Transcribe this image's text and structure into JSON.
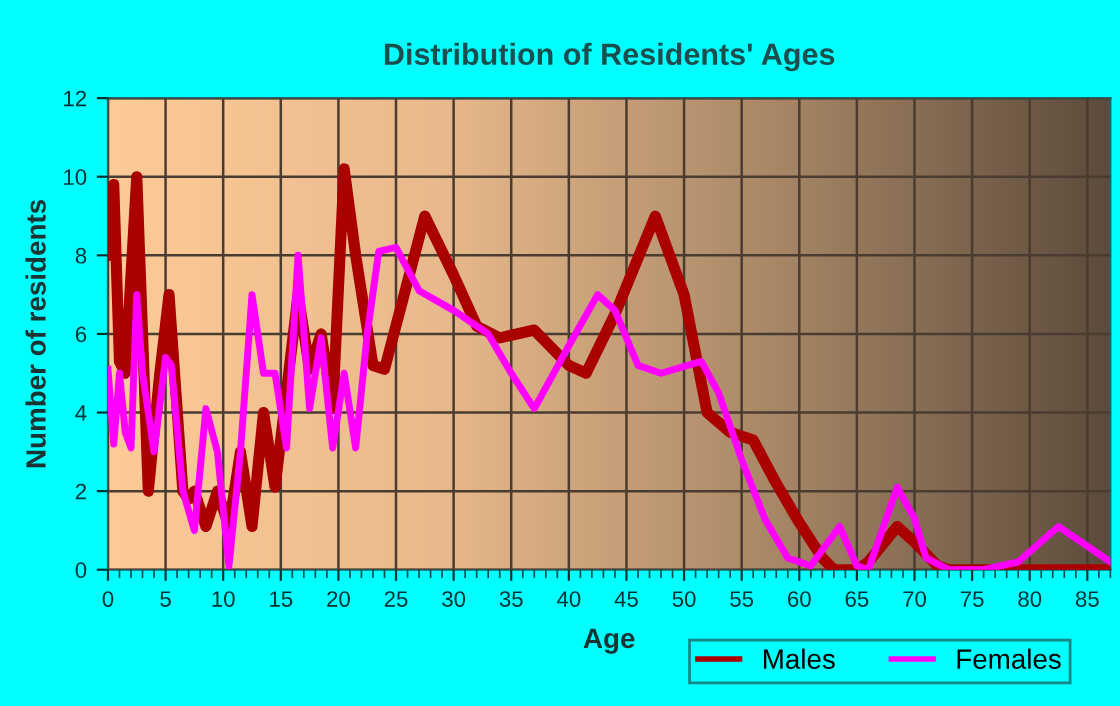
{
  "chart_data": {
    "type": "line",
    "title": "Distribution of Residents' Ages",
    "xlabel": "Age",
    "ylabel": "Number of residents",
    "xlim": [
      0,
      87
    ],
    "xticks": [
      0,
      5,
      10,
      15,
      20,
      25,
      30,
      35,
      40,
      45,
      50,
      55,
      60,
      65,
      70,
      75,
      80,
      85
    ],
    "ylim": [
      0,
      12
    ],
    "yticks": [
      0,
      2,
      4,
      6,
      8,
      10,
      12
    ],
    "grid": true,
    "legend": "bottom",
    "line_style": "solid",
    "marker": "none",
    "series": [
      {
        "name": "Males",
        "color": "#aa0000",
        "x": [
          0,
          0.5,
          1,
          1.5,
          2.5,
          3.5,
          4.5,
          5.3,
          6.5,
          7,
          7.5,
          8.5,
          9.5,
          10.5,
          11.5,
          12.5,
          13.5,
          14.5,
          16.5,
          17.5,
          18.5,
          19.5,
          20.5,
          21.5,
          23,
          24,
          27.5,
          30,
          32,
          34,
          37,
          40,
          41.5,
          44,
          47.5,
          50,
          52,
          54,
          56,
          58,
          60,
          62,
          63,
          65,
          66,
          68.5,
          70,
          72,
          73,
          77,
          87
        ],
        "values": [
          8,
          9.8,
          5.3,
          5,
          10,
          2,
          5,
          7,
          2,
          1.8,
          2,
          1.1,
          2,
          1.1,
          3,
          1.1,
          4,
          2.1,
          7,
          5.1,
          6,
          4.1,
          10.2,
          8,
          5.2,
          5.1,
          9,
          7.5,
          6.2,
          5.9,
          6.1,
          5.2,
          5,
          6.5,
          9,
          7,
          4,
          3.5,
          3.3,
          2.2,
          1.2,
          0.3,
          0,
          0,
          0.2,
          1.1,
          0.7,
          0.1,
          0,
          0,
          0
        ]
      },
      {
        "name": "Females",
        "color": "#ff00ff",
        "x": [
          0,
          0.5,
          1,
          1.5,
          2,
          2.5,
          3,
          4,
          5,
          5.5,
          6.5,
          7.5,
          8.5,
          9.5,
          10.5,
          11.5,
          12.5,
          13.5,
          14.5,
          15.5,
          16.5,
          17.5,
          18.5,
          19.5,
          20.5,
          21.5,
          22.5,
          23.5,
          25,
          27,
          30,
          33,
          35,
          37,
          40,
          42.5,
          44,
          46,
          48,
          51.5,
          53,
          55,
          57,
          59,
          61,
          62,
          63.5,
          65,
          66,
          68.5,
          70,
          71,
          73,
          76,
          79,
          82.5,
          85,
          87
        ],
        "values": [
          5.1,
          3.2,
          5,
          3.5,
          3.1,
          7,
          5,
          3,
          5.4,
          5.2,
          2,
          1,
          4.1,
          3,
          0.1,
          3,
          7,
          5,
          5,
          3.1,
          8,
          4.1,
          5.9,
          3.1,
          5,
          3.1,
          6,
          8.1,
          8.2,
          7.1,
          6.6,
          6,
          5,
          4.1,
          5.7,
          7,
          6.6,
          5.2,
          5,
          5.3,
          4.5,
          2.8,
          1.3,
          0.3,
          0.1,
          0.5,
          1.1,
          0.1,
          0,
          2.1,
          1.3,
          0.3,
          0,
          0,
          0.2,
          1.1,
          0.6,
          0.2
        ]
      }
    ]
  }
}
